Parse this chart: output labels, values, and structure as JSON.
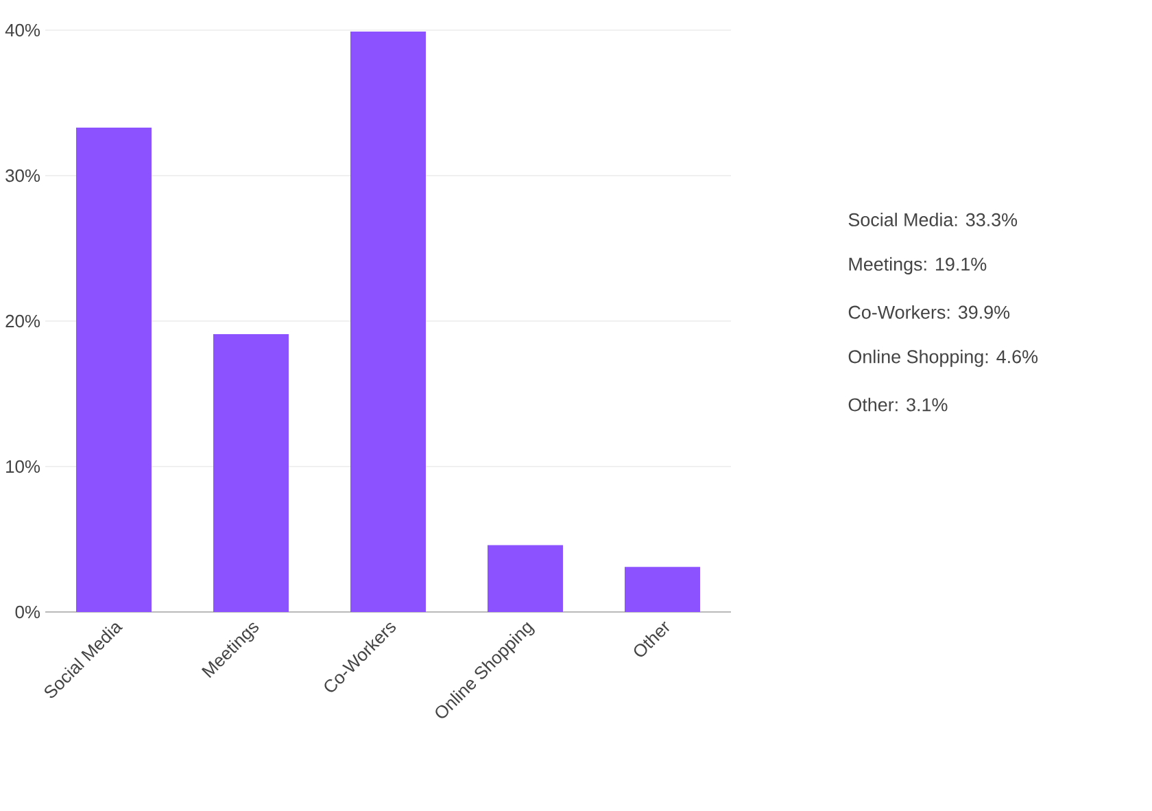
{
  "chart_data": {
    "type": "bar",
    "categories": [
      "Social Media",
      "Meetings",
      "Co-Workers",
      "Online Shopping",
      "Other"
    ],
    "values": [
      33.3,
      19.1,
      39.9,
      4.6,
      3.1
    ],
    "color": "#8c52ff",
    "ylim": [
      0,
      40
    ],
    "yticks": [
      {
        "value": 0,
        "label": "0%"
      },
      {
        "value": 10,
        "label": "10%"
      },
      {
        "value": 20,
        "label": "20%"
      },
      {
        "value": 30,
        "label": "30%"
      },
      {
        "value": 40,
        "label": "40%"
      }
    ],
    "grid": "y",
    "annotations": [
      "Social Media: 33.3%",
      "Meetings: 19.1%",
      "Co-Workers: 39.9%",
      "Online Shopping: 4.6%",
      "Other: 3.1%"
    ]
  }
}
